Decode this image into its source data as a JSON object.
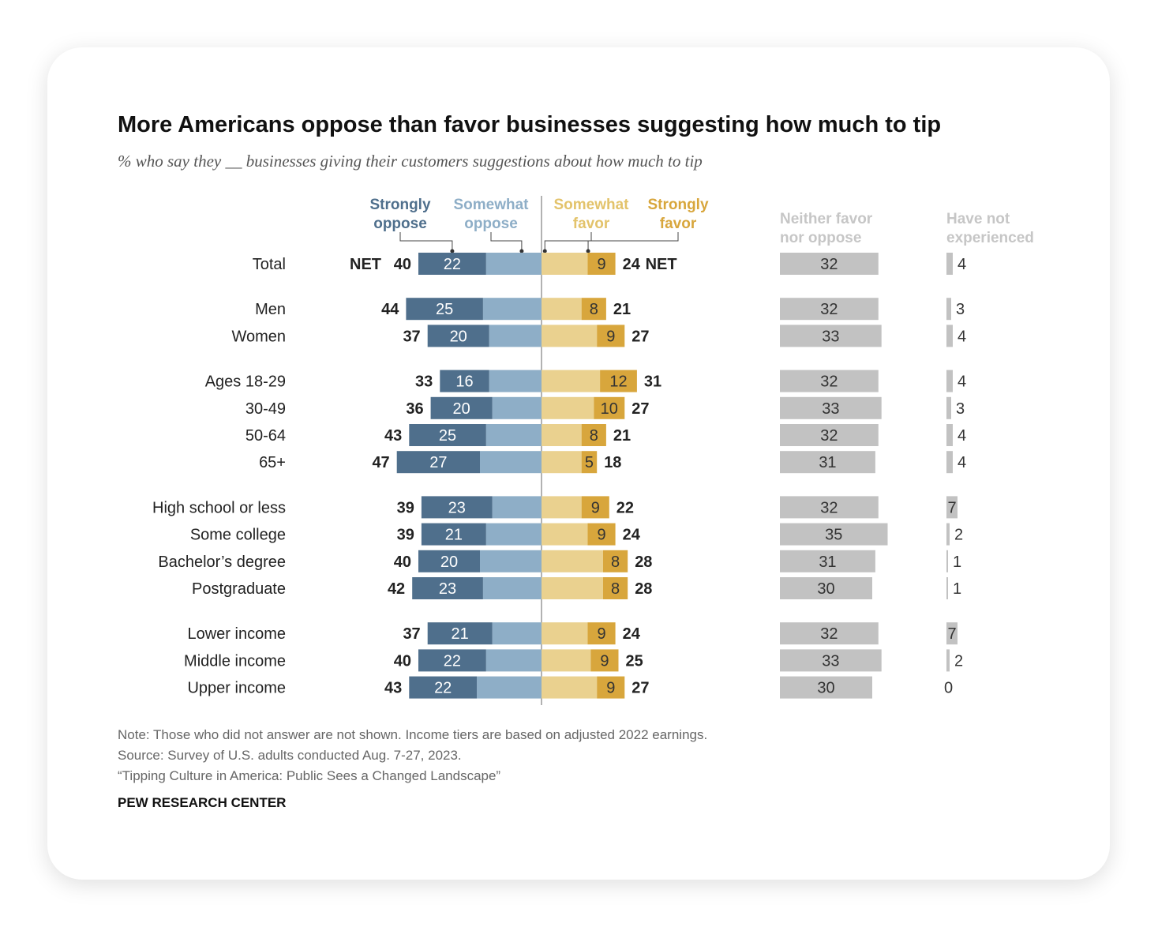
{
  "header": {
    "title": "More Americans oppose than favor businesses suggesting how much to tip",
    "subtitle": "% who say they __ businesses giving their customers suggestions about how much to tip"
  },
  "legend": {
    "strongly_oppose": [
      "Strongly",
      "oppose"
    ],
    "somewhat_oppose": [
      "Somewhat",
      "oppose"
    ],
    "somewhat_favor": [
      "Somewhat",
      "favor"
    ],
    "strongly_favor": [
      "Strongly",
      "favor"
    ],
    "neither": [
      "Neither favor",
      "nor oppose"
    ],
    "not_experienced": [
      "Have not",
      "experienced"
    ]
  },
  "net_label": "NET",
  "colors": {
    "strongly_oppose": "#4f6f8c",
    "somewhat_oppose": "#8eaec7",
    "somewhat_favor": "#ead18f",
    "strongly_favor": "#d8a63c",
    "neither": "#c2c2c2",
    "not_experienced": "#c2c2c2",
    "oppose_legend": "#4f6f8c",
    "somewhat_oppose_legend": "#8eaec7",
    "somewhat_favor_legend": "#e3c36b",
    "strongly_favor_legend": "#d8a63c",
    "gray_legend": "#c6c6c6"
  },
  "chart_data": {
    "type": "bar",
    "categories": [
      "Total",
      "Men",
      "Women",
      "Ages 18-29",
      "30-49",
      "50-64",
      "65+",
      "High school or less",
      "Some college",
      "Bachelor’s degree",
      "Postgraduate",
      "Lower income",
      "Middle income",
      "Upper income"
    ],
    "groups": [
      [
        0
      ],
      [
        1,
        2
      ],
      [
        3,
        4,
        5,
        6
      ],
      [
        7,
        8,
        9,
        10
      ],
      [
        11,
        12,
        13
      ]
    ],
    "series": [
      {
        "name": "Strongly oppose",
        "values": [
          22,
          25,
          20,
          16,
          20,
          25,
          27,
          23,
          21,
          20,
          23,
          21,
          22,
          22
        ]
      },
      {
        "name": "Somewhat oppose",
        "values": [
          18,
          19,
          17,
          17,
          16,
          18,
          20,
          16,
          18,
          20,
          19,
          16,
          18,
          21
        ]
      },
      {
        "name": "Somewhat favor",
        "values": [
          15,
          13,
          18,
          19,
          17,
          13,
          13,
          13,
          15,
          20,
          20,
          15,
          16,
          18
        ]
      },
      {
        "name": "Strongly favor",
        "values": [
          9,
          8,
          9,
          12,
          10,
          8,
          5,
          9,
          9,
          8,
          8,
          9,
          9,
          9
        ]
      },
      {
        "name": "Neither favor nor oppose",
        "values": [
          32,
          32,
          33,
          32,
          33,
          32,
          31,
          32,
          35,
          31,
          30,
          32,
          33,
          30
        ]
      },
      {
        "name": "Have not experienced",
        "values": [
          4,
          3,
          4,
          4,
          3,
          4,
          4,
          7,
          2,
          1,
          1,
          7,
          2,
          0
        ]
      }
    ],
    "net_oppose": [
      40,
      44,
      37,
      33,
      36,
      43,
      47,
      39,
      39,
      40,
      42,
      37,
      40,
      43
    ],
    "net_favor": [
      24,
      21,
      27,
      31,
      27,
      21,
      18,
      22,
      24,
      28,
      28,
      24,
      25,
      27
    ]
  },
  "footer": {
    "note": "Note: Those who did not answer are not shown. Income tiers are based on adjusted 2022 earnings.",
    "source": "Source: Survey of U.S. adults conducted Aug. 7-27, 2023.",
    "report": "“Tipping Culture in America: Public Sees a Changed Landscape”",
    "brand": "PEW RESEARCH CENTER"
  }
}
